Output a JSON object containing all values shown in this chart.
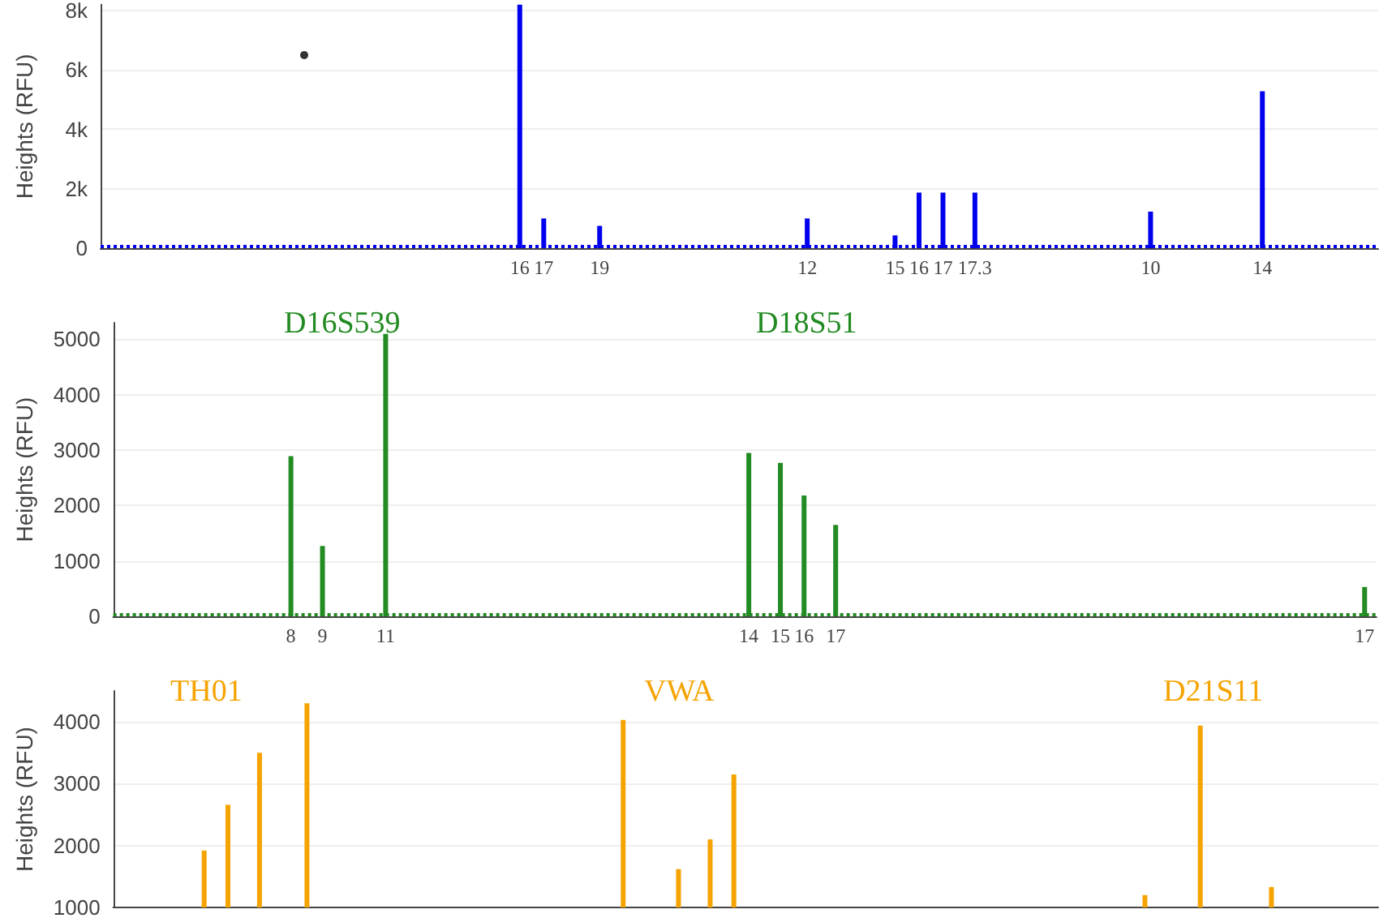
{
  "chart_data": [
    {
      "type": "bar",
      "ylabel": "Heights (RFU)",
      "ylim": [
        0,
        8200
      ],
      "yticks": [
        0,
        {
          "value": 2000,
          "label": "2k"
        },
        {
          "value": 4000,
          "label": "4k"
        },
        {
          "value": 6000,
          "label": "6k"
        },
        {
          "value": 8000,
          "label": "8k"
        }
      ],
      "grid": "y",
      "marker": "circle",
      "categories": [
        null,
        null,
        null,
        null,
        null,
        null,
        null,
        null,
        null,
        null,
        null,
        null,
        null,
        null,
        null,
        null,
        null,
        null,
        null,
        null,
        null,
        null,
        null,
        null,
        null,
        null,
        null,
        null,
        null,
        null,
        null,
        null,
        null,
        null,
        null,
        null,
        null,
        null,
        null,
        null,
        null,
        null,
        null,
        null,
        null,
        null,
        null,
        null,
        null,
        null,
        null,
        null,
        "16",
        null,
        null,
        "17",
        null,
        null,
        null,
        null,
        null,
        null,
        "19",
        null,
        null,
        null,
        null,
        null,
        null,
        null,
        null,
        null,
        null,
        null,
        null,
        null,
        null,
        null,
        null,
        null,
        null,
        null,
        null,
        null,
        null,
        null,
        null,
        null,
        "12",
        null,
        null,
        null,
        null,
        null,
        null,
        null,
        null,
        null,
        null,
        "15",
        null,
        null,
        "16",
        null,
        null,
        "17",
        null,
        null,
        null,
        "17.3",
        null,
        null,
        null,
        null,
        null,
        null,
        null,
        null,
        null,
        null,
        null,
        null,
        null,
        null,
        null,
        null,
        null,
        null,
        null,
        null,
        null,
        "10",
        null,
        null,
        null,
        null,
        null,
        null,
        null,
        null,
        null,
        null,
        null,
        null,
        null,
        "14",
        null,
        null,
        null,
        null,
        null,
        null,
        null,
        null,
        null,
        null,
        null,
        null,
        null,
        null
      ],
      "ref_lines": [
        {
          "axis": "y",
          "value": 50,
          "color": "#0000ee",
          "line_style": "dotted"
        }
      ],
      "series": [
        {
          "color": "#0000ee",
          "values": [
            null,
            null,
            null,
            null,
            null,
            null,
            null,
            null,
            null,
            null,
            null,
            null,
            null,
            null,
            null,
            null,
            null,
            null,
            null,
            null,
            null,
            null,
            null,
            null,
            null,
            null,
            null,
            null,
            null,
            null,
            null,
            null,
            null,
            null,
            null,
            null,
            null,
            null,
            null,
            null,
            null,
            null,
            null,
            null,
            null,
            null,
            null,
            null,
            null,
            null,
            null,
            null,
            8200,
            null,
            null,
            1000,
            null,
            null,
            null,
            null,
            null,
            null,
            750,
            null,
            null,
            null,
            null,
            null,
            null,
            null,
            null,
            null,
            null,
            null,
            null,
            null,
            null,
            null,
            null,
            null,
            null,
            null,
            null,
            null,
            null,
            null,
            null,
            null,
            1000,
            null,
            null,
            null,
            null,
            null,
            null,
            null,
            null,
            null,
            null,
            430,
            null,
            null,
            1870,
            null,
            null,
            1870,
            null,
            null,
            null,
            1870,
            null,
            null,
            null,
            null,
            null,
            null,
            null,
            null,
            null,
            null,
            null,
            null,
            null,
            null,
            null,
            null,
            null,
            null,
            null,
            null,
            null,
            1230,
            null,
            null,
            null,
            null,
            null,
            null,
            null,
            null,
            null,
            null,
            null,
            null,
            null,
            5280,
            null,
            null,
            null,
            null,
            null,
            null,
            null,
            null,
            null,
            null,
            null,
            null,
            null,
            null
          ]
        },
        {
          "type": "scatter",
          "color": "#000000",
          "values": [
            null,
            null,
            null,
            null,
            null,
            null,
            null,
            null,
            null,
            null,
            null,
            null,
            null,
            null,
            null,
            null,
            null,
            null,
            null,
            null,
            null,
            null,
            null,
            null,
            null,
            6500,
            null,
            null,
            null,
            null,
            null,
            null,
            null,
            null,
            null,
            null,
            null,
            null,
            null,
            null,
            null,
            null,
            null,
            null,
            null,
            null,
            null,
            null,
            null,
            null,
            null,
            null,
            null,
            null,
            null,
            null,
            null,
            null,
            null,
            null,
            null,
            null,
            null,
            null,
            null,
            null,
            null,
            null,
            null,
            null,
            null,
            null,
            null,
            null,
            null,
            null,
            null,
            null,
            null,
            null,
            null,
            null,
            null,
            null,
            null,
            null,
            null,
            null,
            null,
            null,
            null,
            null,
            null,
            null,
            null,
            null,
            null,
            null,
            null,
            null,
            null,
            null,
            null,
            null,
            null,
            null,
            null,
            null,
            null,
            null,
            null,
            null,
            null,
            null,
            null,
            null,
            null,
            null,
            null,
            null,
            null,
            null,
            null,
            null,
            null,
            null,
            null,
            null,
            null,
            null,
            null,
            null,
            null,
            null,
            null,
            null,
            null,
            null,
            null,
            null,
            null,
            null,
            null,
            null,
            null,
            null,
            null,
            null,
            null,
            null,
            null,
            null,
            null,
            null,
            null,
            null,
            null,
            null,
            null,
            null
          ]
        }
      ]
    },
    {
      "type": "bar",
      "ylabel": "Heights (RFU)",
      "ylim": [
        0,
        5300
      ],
      "yticks": [
        0,
        1000,
        2000,
        3000,
        4000,
        5000
      ],
      "grid": "y",
      "annotations": [
        "D16S539",
        "D18S51"
      ],
      "categories": [
        null,
        null,
        null,
        null,
        null,
        null,
        null,
        null,
        null,
        null,
        null,
        null,
        null,
        null,
        null,
        null,
        null,
        null,
        null,
        null,
        null,
        null,
        "8",
        null,
        null,
        null,
        "9",
        null,
        null,
        null,
        null,
        null,
        null,
        null,
        "11",
        null,
        null,
        null,
        null,
        null,
        null,
        null,
        null,
        null,
        null,
        null,
        null,
        null,
        null,
        null,
        null,
        null,
        null,
        null,
        null,
        null,
        null,
        null,
        null,
        null,
        null,
        null,
        null,
        null,
        null,
        null,
        null,
        null,
        null,
        null,
        null,
        null,
        null,
        null,
        null,
        null,
        null,
        null,
        null,
        null,
        "14",
        null,
        null,
        null,
        "15",
        null,
        null,
        "16",
        null,
        null,
        null,
        "17",
        null,
        null,
        null,
        null,
        null,
        null,
        null,
        null,
        null,
        null,
        null,
        null,
        null,
        null,
        null,
        null,
        null,
        null,
        null,
        null,
        null,
        null,
        null,
        null,
        null,
        null,
        null,
        null,
        null,
        null,
        null,
        null,
        null,
        null,
        null,
        null,
        null,
        null,
        null,
        null,
        null,
        null,
        null,
        null,
        null,
        null,
        null,
        null,
        null,
        null,
        null,
        null,
        null,
        null,
        null,
        null,
        null,
        null,
        null,
        null,
        null,
        null,
        null,
        null,
        null,
        null,
        "17",
        null
      ],
      "ref_lines": [
        {
          "axis": "y",
          "value": 50,
          "color": "#228b22",
          "line_style": "dotted"
        }
      ],
      "series": [
        {
          "color": "#228b22",
          "values": [
            null,
            null,
            null,
            null,
            null,
            null,
            null,
            null,
            null,
            null,
            null,
            null,
            null,
            null,
            null,
            null,
            null,
            null,
            null,
            null,
            null,
            null,
            2890,
            null,
            null,
            null,
            1270,
            null,
            null,
            null,
            null,
            null,
            null,
            null,
            5100,
            null,
            null,
            null,
            null,
            null,
            null,
            null,
            null,
            null,
            null,
            null,
            null,
            null,
            null,
            null,
            null,
            null,
            null,
            null,
            null,
            null,
            null,
            null,
            null,
            null,
            null,
            null,
            null,
            null,
            null,
            null,
            null,
            null,
            null,
            null,
            null,
            null,
            null,
            null,
            null,
            null,
            null,
            null,
            null,
            null,
            2950,
            null,
            null,
            null,
            2770,
            null,
            null,
            2180,
            null,
            null,
            null,
            1650,
            null,
            null,
            null,
            null,
            null,
            null,
            null,
            null,
            null,
            null,
            null,
            null,
            null,
            null,
            null,
            null,
            null,
            null,
            null,
            null,
            null,
            null,
            null,
            null,
            null,
            null,
            null,
            null,
            null,
            null,
            null,
            null,
            null,
            null,
            null,
            null,
            null,
            null,
            null,
            null,
            null,
            null,
            null,
            null,
            null,
            null,
            null,
            null,
            null,
            null,
            null,
            null,
            null,
            null,
            null,
            null,
            null,
            null,
            null,
            null,
            null,
            null,
            null,
            null,
            null,
            null,
            530,
            null
          ]
        }
      ]
    },
    {
      "type": "bar",
      "ylabel": "Heights (RFU)",
      "ylim": [
        1000,
        4500
      ],
      "yticks": [
        1000,
        2000,
        3000,
        4000
      ],
      "grid": "y",
      "annotations": [
        "TH01",
        "VWA",
        "D21S11"
      ],
      "categories": [
        null,
        null,
        null,
        null,
        null,
        null,
        null,
        null,
        null,
        null,
        null,
        null,
        null,
        null,
        null,
        null,
        null,
        null,
        null,
        null,
        null,
        null,
        null,
        null,
        null,
        null,
        null,
        null,
        null,
        null,
        null,
        null,
        null,
        null,
        null,
        null,
        null,
        null,
        null,
        null,
        null,
        null,
        null,
        null,
        null,
        null,
        null,
        null,
        null,
        null,
        null,
        null,
        null,
        null,
        null,
        null,
        null,
        null,
        null,
        null,
        null,
        null,
        null,
        null,
        null,
        null,
        null,
        null,
        null,
        null,
        null,
        null,
        null,
        null,
        null,
        null,
        null,
        null,
        null,
        null,
        null,
        null,
        null,
        null,
        null,
        null,
        null,
        null,
        null,
        null,
        null,
        null,
        null,
        null,
        null,
        null,
        null,
        null,
        null,
        null,
        null,
        null,
        null,
        null,
        null,
        null,
        null,
        null,
        null,
        null,
        null,
        null,
        null,
        null,
        null,
        null,
        null,
        null,
        null,
        null,
        null,
        null,
        null,
        null,
        null,
        null,
        null,
        null,
        null,
        null,
        null,
        null,
        null,
        null,
        null,
        null,
        null,
        null,
        null,
        null,
        null,
        null,
        null,
        null,
        null,
        null,
        null,
        null,
        null,
        null,
        null,
        null,
        null,
        null,
        null,
        null,
        null,
        null,
        null,
        null
      ],
      "series": [
        {
          "color": "#f5a300",
          "values": [
            null,
            null,
            null,
            null,
            null,
            null,
            null,
            null,
            null,
            null,
            null,
            1920,
            null,
            null,
            2660,
            null,
            null,
            null,
            3500,
            null,
            null,
            null,
            null,
            null,
            4300,
            null,
            null,
            null,
            null,
            null,
            null,
            null,
            null,
            null,
            null,
            null,
            null,
            null,
            null,
            null,
            null,
            null,
            null,
            null,
            null,
            null,
            null,
            null,
            null,
            null,
            null,
            null,
            null,
            null,
            null,
            null,
            null,
            null,
            null,
            null,
            null,
            null,
            null,
            null,
            4030,
            null,
            null,
            null,
            null,
            null,
            null,
            1620,
            null,
            null,
            null,
            2100,
            null,
            null,
            3150,
            null,
            null,
            null,
            null,
            null,
            null,
            null,
            null,
            null,
            null,
            null,
            null,
            null,
            null,
            null,
            null,
            null,
            null,
            null,
            null,
            null,
            null,
            null,
            null,
            null,
            null,
            null,
            null,
            null,
            null,
            null,
            null,
            null,
            null,
            null,
            null,
            null,
            null,
            null,
            null,
            null,
            null,
            null,
            null,
            null,
            null,
            null,
            null,
            null,
            null,
            null,
            1200,
            null,
            null,
            null,
            null,
            null,
            null,
            3940,
            null,
            null,
            null,
            null,
            null,
            null,
            null,
            null,
            1330,
            null,
            null,
            null,
            null,
            null,
            null,
            null,
            null,
            null,
            null,
            null,
            null,
            null
          ]
        }
      ]
    }
  ]
}
